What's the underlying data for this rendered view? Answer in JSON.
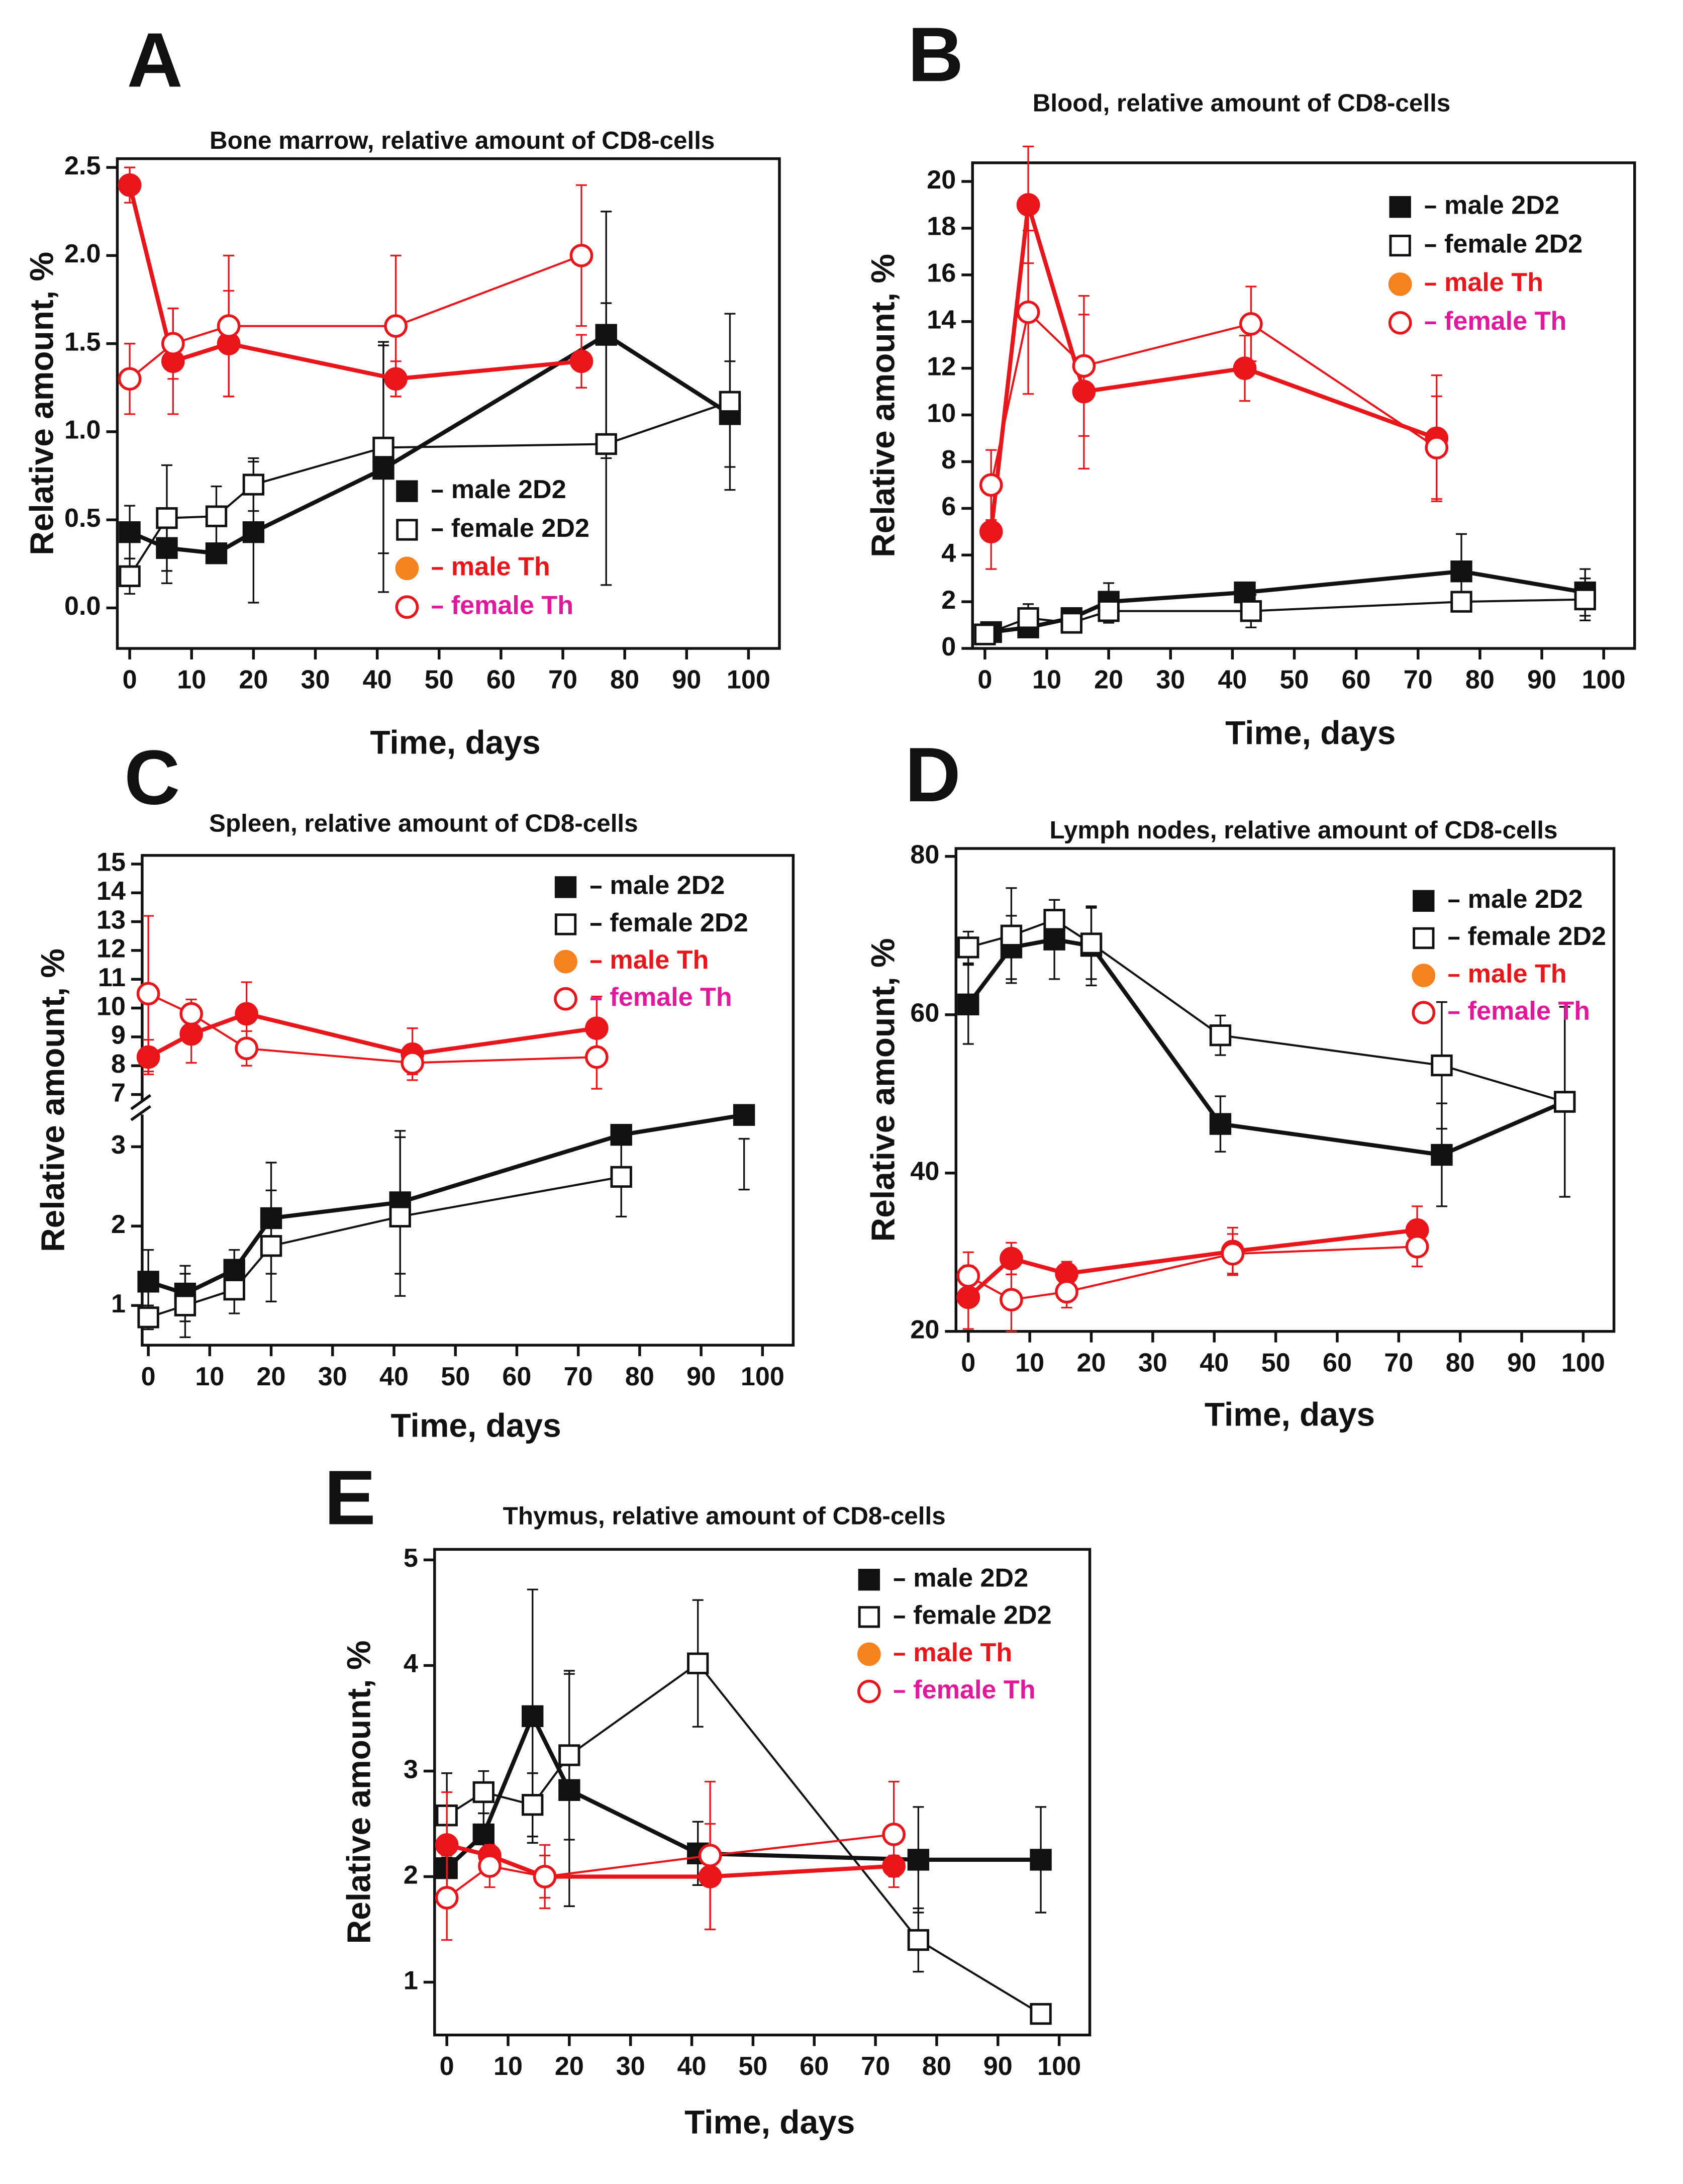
{
  "chart_data": [
    {
      "type": "line",
      "label": "A",
      "title": "Bone marrow, relative amount of CD8-cells",
      "xlabel": "Time, days",
      "ylabel": "Relative amount, %",
      "xlim": [
        -2,
        105
      ],
      "xticks": [
        0,
        10,
        20,
        30,
        40,
        50,
        60,
        70,
        80,
        90,
        100
      ],
      "ylim": [
        -0.23,
        2.55
      ],
      "yticks": [
        {
          "value": 0,
          "label": "0.0"
        },
        0.5,
        {
          "value": 1,
          "label": "1.0"
        },
        1.5,
        {
          "value": 2,
          "label": "2.0"
        },
        2.5
      ],
      "series": [
        {
          "name": "male 2D2",
          "color": "#111111",
          "label_color": "#111111",
          "legend_marker_color": "#111111",
          "marker": "square",
          "filled": true,
          "line_width": 3,
          "x": [
            0,
            6,
            14,
            20,
            41,
            77,
            97
          ],
          "values": [
            0.43,
            0.34,
            0.31,
            0.43,
            0.79,
            1.55,
            1.1
          ],
          "errors": [
            0.15,
            0.2,
            0.05,
            0.4,
            0.7,
            0.7,
            0.3
          ]
        },
        {
          "name": "female 2D2",
          "color": "#111111",
          "label_color": "#111111",
          "legend_marker_color": "#111111",
          "marker": "square",
          "filled": false,
          "line_width": 1.5,
          "x": [
            0,
            6,
            14,
            20,
            41,
            77,
            97
          ],
          "values": [
            0.18,
            0.51,
            0.52,
            0.7,
            0.91,
            0.93,
            1.17
          ],
          "errors": [
            0.1,
            0.3,
            0.17,
            0.15,
            0.6,
            0.8,
            0.5
          ]
        },
        {
          "name": "male Th",
          "color": "#e8161b",
          "label_color": "#e8161b",
          "legend_marker_color": "#f5821f",
          "marker": "circle",
          "filled": true,
          "line_width": 3,
          "x": [
            0,
            7,
            16,
            43,
            73
          ],
          "values": [
            2.4,
            1.4,
            1.5,
            1.3,
            1.4
          ],
          "errors": [
            0.1,
            0.3,
            0.3,
            0.1,
            0.15
          ]
        },
        {
          "name": "female Th",
          "color": "#e8161b",
          "label_color": "#e0189b",
          "legend_marker_color": "#e8161b",
          "marker": "circle",
          "filled": false,
          "line_width": 1.5,
          "x": [
            0,
            7,
            16,
            43,
            73
          ],
          "values": [
            1.3,
            1.5,
            1.6,
            1.6,
            2.0
          ],
          "errors": [
            0.2,
            0.2,
            0.4,
            0.4,
            0.4
          ]
        }
      ]
    },
    {
      "type": "line",
      "label": "B",
      "title": "Blood, relative amount of CD8-cells",
      "xlabel": "Time, days",
      "ylabel": "Relative amount, %",
      "xlim": [
        -2,
        105
      ],
      "xticks": [
        0,
        10,
        20,
        30,
        40,
        50,
        60,
        70,
        80,
        90,
        100
      ],
      "ylim": [
        0,
        20.8
      ],
      "yticks": [
        0,
        2,
        4,
        6,
        8,
        10,
        12,
        14,
        16,
        18,
        20
      ],
      "series": [
        {
          "name": "male 2D2",
          "color": "#111111",
          "label_color": "#111111",
          "legend_marker_color": "#111111",
          "marker": "square",
          "filled": true,
          "line_width": 3,
          "x": [
            1,
            7,
            14,
            20,
            42,
            77,
            97
          ],
          "values": [
            0.7,
            0.9,
            1.3,
            2.0,
            2.4,
            3.3,
            2.4
          ],
          "errors": [
            0.3,
            0.3,
            0.3,
            0.8,
            0.3,
            1.6,
            1.0
          ]
        },
        {
          "name": "female 2D2",
          "color": "#111111",
          "label_color": "#111111",
          "legend_marker_color": "#111111",
          "marker": "square",
          "filled": false,
          "line_width": 1.5,
          "x": [
            0,
            7,
            14,
            20,
            43,
            77,
            97
          ],
          "values": [
            0.6,
            1.3,
            1.1,
            1.6,
            1.6,
            2.0,
            2.1
          ],
          "errors": [
            0.2,
            0.6,
            0.3,
            0.5,
            0.7,
            0.4,
            0.9
          ]
        },
        {
          "name": "male Th",
          "color": "#e8161b",
          "label_color": "#e8161b",
          "legend_marker_color": "#f5821f",
          "marker": "circle",
          "filled": true,
          "line_width": 3,
          "x": [
            1,
            7,
            16,
            42,
            73
          ],
          "values": [
            5,
            19,
            11,
            12,
            9
          ],
          "errors": [
            1.6,
            2.5,
            3.3,
            1.4,
            2.7
          ]
        },
        {
          "name": "female Th",
          "color": "#e8161b",
          "label_color": "#e0189b",
          "legend_marker_color": "#e8161b",
          "marker": "circle",
          "filled": false,
          "line_width": 1.5,
          "x": [
            1,
            7,
            16,
            43,
            73
          ],
          "values": [
            7,
            14.4,
            12.1,
            13.9,
            8.6
          ],
          "errors": [
            1.5,
            3.5,
            3,
            1.6,
            2.2
          ]
        }
      ]
    },
    {
      "type": "line",
      "label": "C",
      "title": "Spleen, relative amount of CD8-cells",
      "xlabel": "Time, days",
      "ylabel": "Relative amount, %",
      "xlim": [
        -1,
        105
      ],
      "xticks": [
        0,
        10,
        20,
        30,
        40,
        50,
        60,
        70,
        80,
        90,
        100
      ],
      "ylim": [
        0.5,
        15.3
      ],
      "ybreak": [
        3.4,
        6.8
      ],
      "yticks": [
        1,
        2,
        3,
        7,
        8,
        9,
        10,
        11,
        12,
        13,
        14,
        15
      ],
      "series": [
        {
          "name": "male 2D2",
          "color": "#111111",
          "label_color": "#111111",
          "legend_marker_color": "#111111",
          "marker": "square",
          "filled": true,
          "line_width": 3,
          "x": [
            0,
            6,
            14,
            20,
            41,
            77,
            97
          ],
          "values": [
            1.3,
            1.15,
            1.45,
            2.1,
            2.3,
            3.15,
            3.4
          ],
          "errors": [
            0.4,
            0.35,
            0.25,
            0.7,
            0.9,
            0.1,
            0.3
          ]
        },
        {
          "name": "female 2D2",
          "color": "#111111",
          "label_color": "#111111",
          "legend_marker_color": "#111111",
          "marker": "square",
          "filled": false,
          "line_width": 1.5,
          "x": [
            0,
            6,
            14,
            20,
            41,
            77
          ],
          "values": [
            0.85,
            1.0,
            1.2,
            1.75,
            2.12,
            2.62
          ],
          "errors": [
            0.15,
            0.4,
            0.3,
            0.7,
            1.0,
            0.5
          ]
        },
        {
          "name": "male Th",
          "color": "#e8161b",
          "label_color": "#e8161b",
          "legend_marker_color": "#f5821f",
          "marker": "circle",
          "filled": true,
          "line_width": 3,
          "x": [
            0,
            7,
            16,
            43,
            73
          ],
          "values": [
            8.3,
            9.1,
            9.8,
            8.4,
            9.3
          ],
          "errors": [
            0.6,
            1,
            1.1,
            0.9,
            1.1
          ]
        },
        {
          "name": "female Th",
          "color": "#e8161b",
          "label_color": "#e0189b",
          "legend_marker_color": "#e8161b",
          "marker": "circle",
          "filled": false,
          "line_width": 1.5,
          "x": [
            0,
            7,
            16,
            43,
            73
          ],
          "values": [
            10.5,
            9.8,
            8.6,
            8.1,
            8.3
          ],
          "errors": [
            2.7,
            0.5,
            0.6,
            0.4,
            1.1
          ]
        }
      ]
    },
    {
      "type": "line",
      "label": "D",
      "title": "Lymph nodes, relative amount of CD8-cells",
      "xlabel": "Time, days",
      "ylabel": "Relative amount, %",
      "xlim": [
        -2,
        105
      ],
      "xticks": [
        0,
        10,
        20,
        30,
        40,
        50,
        60,
        70,
        80,
        90,
        100
      ],
      "ylim": [
        20,
        81
      ],
      "yticks": [
        20,
        40,
        60,
        80
      ],
      "series": [
        {
          "name": "male 2D2",
          "color": "#111111",
          "label_color": "#111111",
          "legend_marker_color": "#111111",
          "marker": "square",
          "filled": true,
          "line_width": 3,
          "x": [
            0,
            7,
            14,
            20,
            41,
            77,
            97
          ],
          "values": [
            61.3,
            68.5,
            69.5,
            68.7,
            46.2,
            42.3,
            49
          ],
          "errors": [
            5,
            4,
            5,
            5,
            3.5,
            6.5,
            12
          ]
        },
        {
          "name": "female 2D2",
          "color": "#111111",
          "label_color": "#111111",
          "legend_marker_color": "#111111",
          "marker": "square",
          "filled": false,
          "line_width": 1.5,
          "x": [
            0,
            7,
            14,
            20,
            41,
            77,
            97
          ],
          "values": [
            68.5,
            70,
            72,
            69,
            57.4,
            53.6,
            49
          ],
          "errors": [
            2,
            6,
            2.5,
            4.5,
            2.5,
            8,
            12
          ]
        },
        {
          "name": "male Th",
          "color": "#e8161b",
          "label_color": "#e8161b",
          "legend_marker_color": "#f5821f",
          "marker": "circle",
          "filled": true,
          "line_width": 3,
          "x": [
            0,
            7,
            16,
            43,
            73
          ],
          "values": [
            24.3,
            29.2,
            27.3,
            30.1,
            32.8
          ],
          "errors": [
            4,
            2,
            1.5,
            3,
            3
          ]
        },
        {
          "name": "female Th",
          "color": "#e8161b",
          "label_color": "#e0189b",
          "legend_marker_color": "#e8161b",
          "marker": "circle",
          "filled": false,
          "line_width": 1.5,
          "x": [
            0,
            7,
            16,
            43,
            73
          ],
          "values": [
            27,
            24,
            25,
            29.8,
            30.7
          ],
          "errors": [
            3,
            4,
            2,
            2.5,
            2.5
          ]
        }
      ]
    },
    {
      "type": "line",
      "label": "E",
      "title": "Thymus, relative amount of CD8-cells",
      "xlabel": "Time, days",
      "ylabel": "Relative amount, %",
      "xlim": [
        -2,
        105
      ],
      "xticks": [
        0,
        10,
        20,
        30,
        40,
        50,
        60,
        70,
        80,
        90,
        100
      ],
      "ylim": [
        0.5,
        5.1
      ],
      "yticks": [
        1,
        2,
        3,
        4,
        5
      ],
      "series": [
        {
          "name": "male 2D2",
          "color": "#111111",
          "label_color": "#111111",
          "legend_marker_color": "#111111",
          "marker": "square",
          "filled": true,
          "line_width": 3,
          "x": [
            0,
            6,
            14,
            20,
            41,
            77,
            97
          ],
          "values": [
            2.08,
            2.4,
            3.52,
            2.82,
            2.22,
            2.16,
            2.16
          ],
          "errors": [
            0.2,
            0.2,
            1.2,
            1.1,
            0.3,
            0.5,
            0.5
          ]
        },
        {
          "name": "female 2D2",
          "color": "#111111",
          "label_color": "#111111",
          "legend_marker_color": "#111111",
          "marker": "square",
          "filled": false,
          "line_width": 1.5,
          "x": [
            0,
            6,
            14,
            20,
            41,
            77,
            97
          ],
          "values": [
            2.58,
            2.8,
            2.68,
            3.15,
            4.02,
            1.4,
            0.7
          ],
          "errors": [
            0.4,
            0.2,
            0.3,
            0.8,
            0.6,
            0.3,
            0.07
          ]
        },
        {
          "name": "male Th",
          "color": "#e8161b",
          "label_color": "#e8161b",
          "legend_marker_color": "#f5821f",
          "marker": "circle",
          "filled": true,
          "line_width": 3,
          "x": [
            0,
            7,
            16,
            43,
            73
          ],
          "values": [
            2.3,
            2.2,
            2.0,
            2.0,
            2.1
          ],
          "errors": [
            0.5,
            0.1,
            0.2,
            0.5,
            0.1
          ]
        },
        {
          "name": "female Th",
          "color": "#e8161b",
          "label_color": "#e0189b",
          "legend_marker_color": "#e8161b",
          "marker": "circle",
          "filled": false,
          "line_width": 1.5,
          "x": [
            0,
            7,
            16,
            43,
            73
          ],
          "values": [
            1.8,
            2.1,
            2.0,
            2.2,
            2.4
          ],
          "errors": [
            0.4,
            0.2,
            0.3,
            0.7,
            0.5
          ]
        }
      ]
    }
  ]
}
